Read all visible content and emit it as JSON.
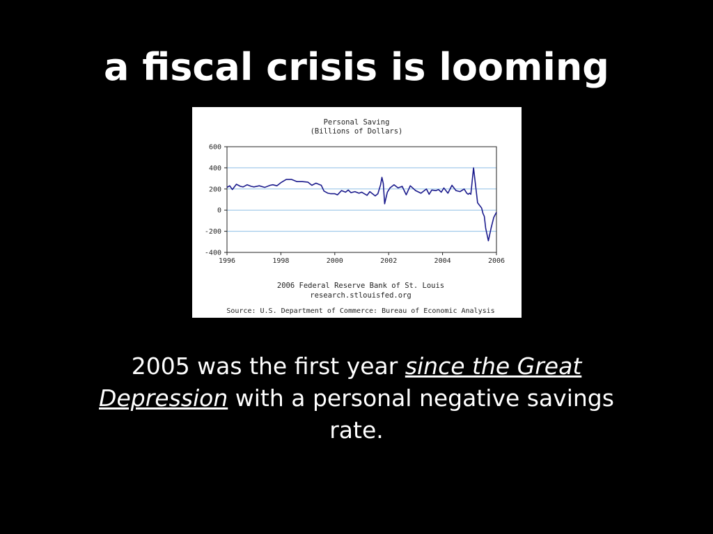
{
  "slide": {
    "title": "a fiscal crisis is looming",
    "caption": {
      "before": "2005 was the first year ",
      "link_1": "since the Great",
      "link_2": "Depression",
      "after": " with a personal negative savings rate."
    }
  },
  "chart_data": {
    "type": "line",
    "title": "Personal Saving",
    "subtitle": "(Billions of Dollars)",
    "footer_1": "2006 Federal Reserve Bank of St. Louis",
    "footer_2": "research.stlouisfed.org",
    "source": "Source: U.S. Department of Commerce: Bureau of Economic Analysis",
    "xlim": [
      1996,
      2006
    ],
    "ylim": [
      -400,
      600
    ],
    "x_ticks": [
      1996,
      1998,
      2000,
      2002,
      2004,
      2006
    ],
    "y_ticks": [
      600,
      400,
      200,
      0,
      -200,
      -400
    ],
    "grid": "horizontal",
    "line_color": "#1a1a8c",
    "grid_color": "#8fbfe6",
    "x": [
      1996.0,
      1996.1,
      1996.2,
      1996.35,
      1996.5,
      1996.6,
      1996.75,
      1996.9,
      1997.0,
      1997.2,
      1997.4,
      1997.6,
      1997.7,
      1997.85,
      1998.0,
      1998.2,
      1998.4,
      1998.6,
      1998.8,
      1999.0,
      1999.15,
      1999.3,
      1999.5,
      1999.6,
      1999.75,
      1999.85,
      2000.0,
      2000.1,
      2000.25,
      2000.4,
      2000.5,
      2000.6,
      2000.75,
      2000.9,
      2001.0,
      2001.2,
      2001.3,
      2001.5,
      2001.6,
      2001.7,
      2001.75,
      2001.8,
      2001.85,
      2001.95,
      2002.05,
      2002.2,
      2002.35,
      2002.5,
      2002.65,
      2002.8,
      2003.0,
      2003.2,
      2003.4,
      2003.5,
      2003.6,
      2003.75,
      2003.85,
      2003.95,
      2004.05,
      2004.2,
      2004.35,
      2004.5,
      2004.65,
      2004.8,
      2004.9,
      2004.95,
      2005.0,
      2005.05,
      2005.15,
      2005.3,
      2005.45,
      2005.5,
      2005.55,
      2005.6,
      2005.7,
      2005.8,
      2005.9,
      2006.0
    ],
    "y": [
      215,
      230,
      195,
      245,
      225,
      220,
      240,
      225,
      220,
      230,
      215,
      235,
      240,
      230,
      260,
      290,
      290,
      270,
      270,
      265,
      235,
      255,
      235,
      180,
      160,
      155,
      155,
      145,
      185,
      170,
      190,
      165,
      175,
      160,
      170,
      140,
      175,
      135,
      155,
      240,
      310,
      250,
      60,
      170,
      210,
      240,
      210,
      225,
      145,
      230,
      185,
      160,
      200,
      150,
      190,
      185,
      195,
      170,
      210,
      160,
      235,
      185,
      175,
      200,
      160,
      150,
      160,
      150,
      400,
      70,
      20,
      -30,
      -60,
      -170,
      -290,
      -170,
      -70,
      -20
    ]
  }
}
